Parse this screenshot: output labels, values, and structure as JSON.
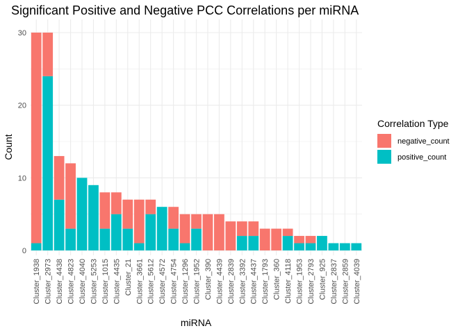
{
  "chart_data": {
    "type": "bar",
    "stacked": true,
    "title": "Significant Positive and Negative PCC Correlations per miRNA",
    "xlabel": "miRNA",
    "ylabel": "Count",
    "ylim": [
      0,
      30
    ],
    "yticks": [
      0,
      10,
      20,
      30
    ],
    "grid": true,
    "legend_position": "right",
    "legend_title": "Correlation Type",
    "categories": [
      "Cluster_1938",
      "Cluster_2973",
      "Cluster_4438",
      "Cluster_4823",
      "Cluster_4040",
      "Cluster_5253",
      "Cluster_1015",
      "Cluster_4435",
      "Cluster_21",
      "Cluster_3661",
      "Cluster_5612",
      "Cluster_4572",
      "Cluster_4754",
      "Cluster_1296",
      "Cluster_1952",
      "Cluster_390",
      "Cluster_4439",
      "Cluster_2839",
      "Cluster_3392",
      "Cluster_4437",
      "Cluster_1793",
      "Cluster_360",
      "Cluster_4118",
      "Cluster_1953",
      "Cluster_2793",
      "Cluster_925",
      "Cluster_2837",
      "Cluster_2859",
      "Cluster_4039"
    ],
    "series": [
      {
        "name": "negative_count",
        "color": "#F8766D",
        "values": [
          29,
          6,
          6,
          9,
          0,
          0,
          5,
          3,
          4,
          6,
          2,
          0,
          3,
          4,
          2,
          5,
          5,
          4,
          2,
          2,
          3,
          3,
          1,
          1,
          1,
          0,
          0,
          0,
          0
        ]
      },
      {
        "name": "positive_count",
        "color": "#00BFC4",
        "values": [
          1,
          24,
          7,
          3,
          10,
          9,
          3,
          5,
          3,
          1,
          5,
          6,
          3,
          1,
          3,
          0,
          0,
          0,
          2,
          2,
          0,
          0,
          2,
          1,
          1,
          2,
          1,
          1,
          1
        ]
      }
    ]
  }
}
